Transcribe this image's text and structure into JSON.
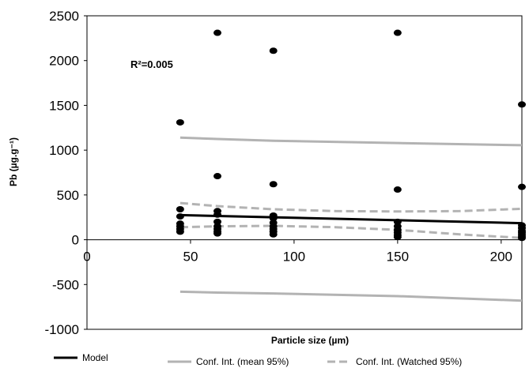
{
  "chart_data": {
    "type": "scatter",
    "title": "",
    "xlabel": "Particle size (µm)",
    "ylabel": "Pb (µg.g⁻¹)",
    "xlim": [
      0,
      210
    ],
    "ylim": [
      -1000,
      2500
    ],
    "x_ticks": [
      0,
      50,
      100,
      150,
      200
    ],
    "y_ticks": [
      -1000,
      -500,
      0,
      500,
      1000,
      1500,
      2000,
      2500
    ],
    "grid": false,
    "annotation": "R²=0.005",
    "legend_position": "bottom",
    "colors": {
      "points": "#000000",
      "model": "#000000",
      "conf_mean": "#b3b3b3",
      "conf_obs": "#b3b3b3"
    },
    "points": [
      [
        45,
        1310
      ],
      [
        45,
        340
      ],
      [
        45,
        260
      ],
      [
        45,
        180
      ],
      [
        45,
        150
      ],
      [
        45,
        120
      ],
      [
        45,
        90
      ],
      [
        63,
        2310
      ],
      [
        63,
        710
      ],
      [
        63,
        320
      ],
      [
        63,
        280
      ],
      [
        63,
        200
      ],
      [
        63,
        150
      ],
      [
        63,
        120
      ],
      [
        63,
        90
      ],
      [
        63,
        70
      ],
      [
        90,
        2110
      ],
      [
        90,
        620
      ],
      [
        90,
        270
      ],
      [
        90,
        240
      ],
      [
        90,
        190
      ],
      [
        90,
        150
      ],
      [
        90,
        120
      ],
      [
        90,
        90
      ],
      [
        90,
        60
      ],
      [
        150,
        2310
      ],
      [
        150,
        560
      ],
      [
        150,
        200
      ],
      [
        150,
        150
      ],
      [
        150,
        110
      ],
      [
        150,
        80
      ],
      [
        150,
        50
      ],
      [
        150,
        30
      ],
      [
        210,
        1510
      ],
      [
        210,
        590
      ],
      [
        210,
        160
      ],
      [
        210,
        130
      ],
      [
        210,
        100
      ],
      [
        210,
        80
      ],
      [
        210,
        60
      ],
      [
        210,
        40
      ],
      [
        210,
        20
      ]
    ],
    "series": [
      {
        "name": "Model",
        "style": "solid-thick",
        "x": [
          45,
          210
        ],
        "y": [
          275,
          185
        ]
      },
      {
        "name": "Conf. Int. (mean 95%)",
        "style": "solid",
        "x": [
          45,
          63,
          90,
          150,
          210
        ],
        "y": [
          1140,
          1125,
          1105,
          1080,
          1055
        ]
      },
      {
        "name": "",
        "style": "solid",
        "x": [
          45,
          63,
          90,
          150,
          210
        ],
        "y": [
          -580,
          -590,
          -600,
          -630,
          -680
        ]
      },
      {
        "name": "Conf. Int. (Watched 95%)",
        "style": "dashed",
        "x": [
          45,
          63,
          90,
          120,
          150,
          180,
          210
        ],
        "y": [
          410,
          375,
          340,
          320,
          315,
          320,
          345
        ]
      },
      {
        "name": "",
        "style": "dashed",
        "x": [
          45,
          63,
          90,
          120,
          150,
          180,
          210
        ],
        "y": [
          140,
          150,
          155,
          140,
          110,
          60,
          20
        ]
      }
    ],
    "legend": [
      {
        "label": "Model",
        "style": "solid-thick"
      },
      {
        "label": "Conf. Int. (mean 95%)",
        "style": "solid"
      },
      {
        "label": "Conf. Int. (Watched 95%)",
        "style": "dashed"
      }
    ]
  }
}
